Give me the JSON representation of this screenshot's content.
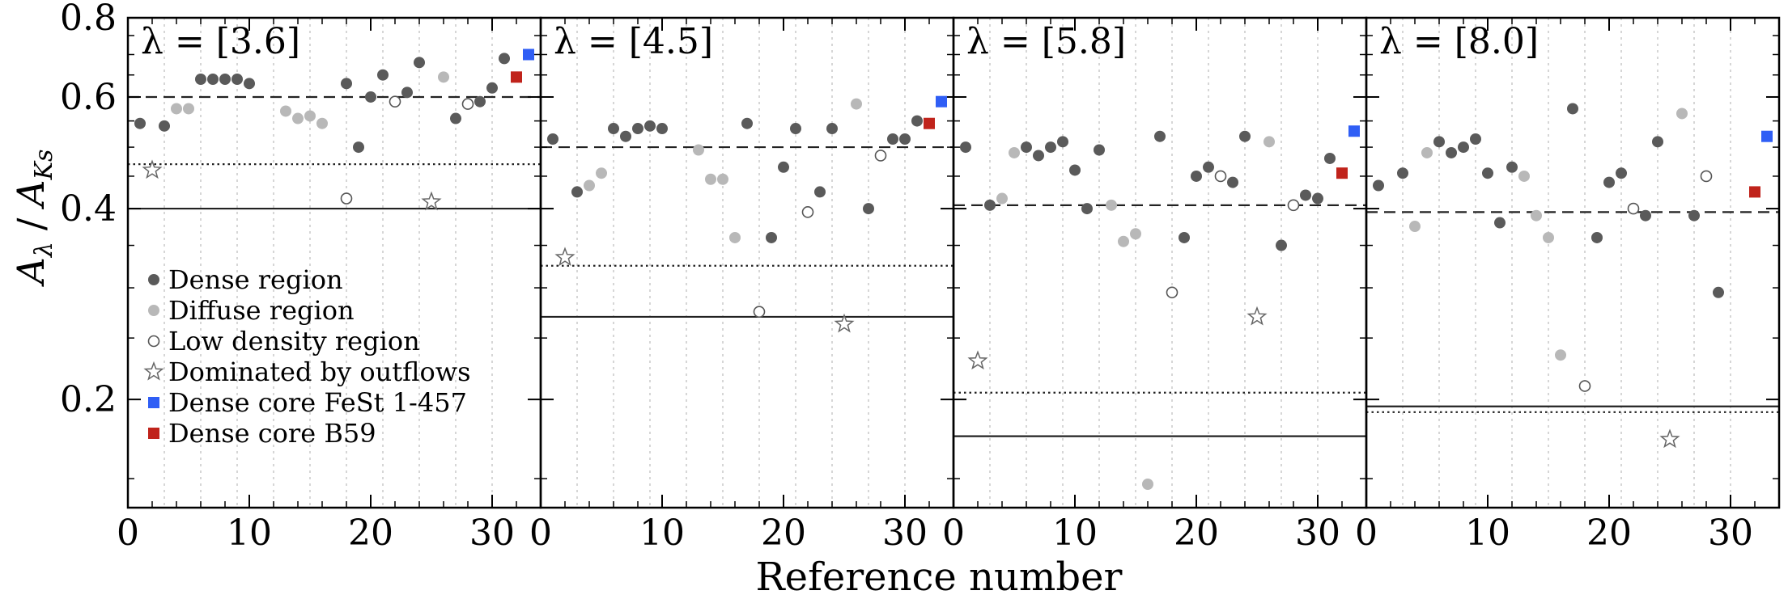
{
  "chart_data": {
    "type": "scatter",
    "xlabel": "Reference number",
    "ylabel_main": "A",
    "ylabel_sub1": "λ",
    "ylabel_sep": "/",
    "ylabel_den": "A",
    "ylabel_sub2": "Ks",
    "yscale": "log",
    "ylim": [
      0.135,
      0.8
    ],
    "xlim": [
      0,
      34
    ],
    "yticks": [
      {
        "v": 0.2,
        "label": "0.2"
      },
      {
        "v": 0.4,
        "label": "0.4"
      },
      {
        "v": 0.6,
        "label": "0.6"
      },
      {
        "v": 0.8,
        "label": "0.8"
      }
    ],
    "xticks": [
      {
        "v": 0,
        "label": "0"
      },
      {
        "v": 10,
        "label": "10"
      },
      {
        "v": 20,
        "label": "20"
      },
      {
        "v": 30,
        "label": "30"
      }
    ],
    "grid_x": [
      3,
      6,
      9,
      12,
      15,
      18,
      21,
      24,
      27,
      30
    ],
    "colors": {
      "dense": "#5a5a5a",
      "diffuse": "#b8b8b8",
      "low": "#ffffff",
      "outflow": "#ffffff",
      "fest": "#2f5ef5",
      "b59": "#c0231b",
      "line": "#222222"
    },
    "legend": [
      {
        "key": "dense",
        "label": "Dense region"
      },
      {
        "key": "diffuse",
        "label": "Diffuse region"
      },
      {
        "key": "low",
        "label": "Low density region"
      },
      {
        "key": "outflow",
        "label": "Dominated by outflows"
      },
      {
        "key": "fest",
        "label": "Dense core FeSt 1-457"
      },
      {
        "key": "b59",
        "label": "Dense core B59"
      }
    ],
    "panels": [
      {
        "title": "λ = [3.6]",
        "lines": {
          "dashed": 0.6,
          "dotted": 0.47,
          "solid": 0.4
        },
        "dense": [
          [
            1,
            0.545
          ],
          [
            3,
            0.54
          ],
          [
            6,
            0.64
          ],
          [
            7,
            0.64
          ],
          [
            8,
            0.64
          ],
          [
            9,
            0.64
          ],
          [
            10,
            0.63
          ],
          [
            18,
            0.63
          ],
          [
            19,
            0.5
          ],
          [
            20,
            0.6
          ],
          [
            21,
            0.65
          ],
          [
            23,
            0.61
          ],
          [
            24,
            0.68
          ],
          [
            27,
            0.555
          ],
          [
            29,
            0.59
          ],
          [
            30,
            0.62
          ],
          [
            31,
            0.69
          ]
        ],
        "diffuse": [
          [
            4,
            0.575
          ],
          [
            5,
            0.575
          ],
          [
            13,
            0.57
          ],
          [
            14,
            0.555
          ],
          [
            15,
            0.56
          ],
          [
            16,
            0.545
          ],
          [
            26,
            0.645
          ]
        ],
        "low": [
          [
            18,
            0.415
          ],
          [
            22,
            0.59
          ],
          [
            28,
            0.585
          ]
        ],
        "outflow": [
          [
            2,
            0.46
          ],
          [
            25,
            0.41
          ]
        ],
        "fest": [
          33,
          0.7
        ],
        "b59": [
          32,
          0.645
        ]
      },
      {
        "title": "λ = [4.5]",
        "lines": {
          "dashed": 0.5,
          "dotted": 0.325,
          "solid": 0.27
        },
        "dense": [
          [
            1,
            0.515
          ],
          [
            3,
            0.425
          ],
          [
            6,
            0.535
          ],
          [
            7,
            0.52
          ],
          [
            8,
            0.535
          ],
          [
            9,
            0.54
          ],
          [
            10,
            0.535
          ],
          [
            17,
            0.545
          ],
          [
            19,
            0.36
          ],
          [
            20,
            0.465
          ],
          [
            21,
            0.535
          ],
          [
            23,
            0.425
          ],
          [
            24,
            0.535
          ],
          [
            27,
            0.4
          ],
          [
            29,
            0.515
          ],
          [
            30,
            0.515
          ],
          [
            31,
            0.55
          ]
        ],
        "diffuse": [
          [
            4,
            0.435
          ],
          [
            5,
            0.455
          ],
          [
            13,
            0.495
          ],
          [
            14,
            0.445
          ],
          [
            15,
            0.445
          ],
          [
            16,
            0.36
          ],
          [
            26,
            0.585
          ]
        ],
        "low": [
          [
            18,
            0.275
          ],
          [
            22,
            0.395
          ],
          [
            28,
            0.485
          ]
        ],
        "outflow": [
          [
            2,
            0.335
          ],
          [
            25,
            0.263
          ]
        ],
        "fest": [
          33,
          0.59
        ],
        "b59": [
          32,
          0.545
        ]
      },
      {
        "title": "λ = [5.8]",
        "lines": {
          "dashed": 0.405,
          "dotted": 0.205,
          "solid": 0.175
        },
        "dense": [
          [
            1,
            0.5
          ],
          [
            3,
            0.405
          ],
          [
            6,
            0.5
          ],
          [
            7,
            0.485
          ],
          [
            8,
            0.5
          ],
          [
            9,
            0.51
          ],
          [
            10,
            0.46
          ],
          [
            11,
            0.4
          ],
          [
            12,
            0.495
          ],
          [
            17,
            0.52
          ],
          [
            19,
            0.36
          ],
          [
            20,
            0.45
          ],
          [
            21,
            0.465
          ],
          [
            23,
            0.44
          ],
          [
            24,
            0.52
          ],
          [
            27,
            0.35
          ],
          [
            29,
            0.42
          ],
          [
            30,
            0.415
          ],
          [
            31,
            0.48
          ]
        ],
        "diffuse": [
          [
            4,
            0.415
          ],
          [
            5,
            0.49
          ],
          [
            13,
            0.405
          ],
          [
            14,
            0.355
          ],
          [
            15,
            0.365
          ],
          [
            16,
            0.147
          ],
          [
            26,
            0.51
          ]
        ],
        "low": [
          [
            18,
            0.295
          ],
          [
            22,
            0.45
          ],
          [
            28,
            0.405
          ]
        ],
        "outflow": [
          [
            2,
            0.23
          ],
          [
            25,
            0.27
          ]
        ],
        "fest": [
          33,
          0.53
        ],
        "b59": [
          32,
          0.455
        ]
      },
      {
        "title": "λ = [8.0]",
        "lines": {
          "dashed": 0.395,
          "dotted": 0.191,
          "solid": 0.195
        },
        "dense": [
          [
            1,
            0.435
          ],
          [
            3,
            0.455
          ],
          [
            6,
            0.51
          ],
          [
            7,
            0.49
          ],
          [
            8,
            0.5
          ],
          [
            9,
            0.515
          ],
          [
            10,
            0.455
          ],
          [
            11,
            0.38
          ],
          [
            12,
            0.465
          ],
          [
            17,
            0.575
          ],
          [
            19,
            0.36
          ],
          [
            20,
            0.44
          ],
          [
            21,
            0.455
          ],
          [
            23,
            0.39
          ],
          [
            24,
            0.51
          ],
          [
            27,
            0.39
          ],
          [
            29,
            0.295
          ]
        ],
        "diffuse": [
          [
            4,
            0.375
          ],
          [
            5,
            0.49
          ],
          [
            13,
            0.45
          ],
          [
            14,
            0.39
          ],
          [
            15,
            0.36
          ],
          [
            16,
            0.235
          ],
          [
            26,
            0.565
          ]
        ],
        "low": [
          [
            18,
            0.21
          ],
          [
            22,
            0.4
          ],
          [
            28,
            0.45
          ]
        ],
        "outflow": [
          [
            25,
            0.173
          ]
        ],
        "fest": [
          33,
          0.52
        ],
        "b59": [
          32,
          0.425
        ]
      }
    ]
  }
}
